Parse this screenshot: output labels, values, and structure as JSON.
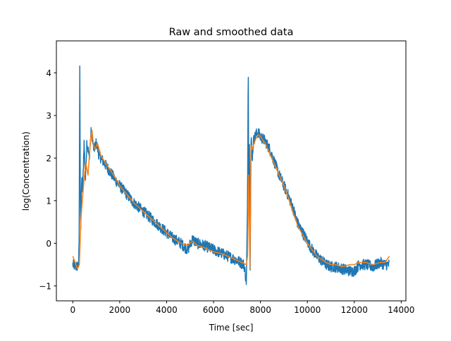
{
  "chart_data": {
    "type": "line",
    "title": "Raw and smoothed data",
    "xlabel": "Time [sec]",
    "ylabel": "log(Concentration)",
    "xlim": [
      -700,
      14200
    ],
    "ylim": [
      -1.35,
      4.75
    ],
    "x_ticks": [
      0,
      2000,
      4000,
      6000,
      8000,
      10000,
      12000,
      14000
    ],
    "x_tick_labels": [
      "0",
      "2000",
      "4000",
      "6000",
      "8000",
      "10000",
      "12000",
      "14000"
    ],
    "y_ticks": [
      -1,
      0,
      1,
      2,
      3,
      4
    ],
    "y_tick_labels": [
      "−1",
      "0",
      "1",
      "2",
      "3",
      "4"
    ],
    "grid": false,
    "legend": "none",
    "series": [
      {
        "color": "#1f77b4",
        "noise": 0.13,
        "x": [
          0,
          150,
          250,
          270,
          300,
          320,
          340,
          380,
          420,
          480,
          540,
          600,
          700,
          780,
          830,
          870,
          900,
          1000,
          1050,
          1100,
          1200,
          1500,
          1800,
          2000,
          2300,
          2600,
          3000,
          3400,
          3800,
          4200,
          4600,
          4900,
          5100,
          5300,
          5600,
          6000,
          6400,
          6800,
          7000,
          7150,
          7300,
          7400,
          7450,
          7480,
          7500,
          7530,
          7560,
          7600,
          7650,
          7700,
          7800,
          7900,
          8000,
          8200,
          8400,
          8600,
          8800,
          9000,
          9200,
          9400,
          9600,
          9800,
          10000,
          10200,
          10400,
          10600,
          10800,
          11000,
          11200,
          11500,
          11800,
          12000,
          12200,
          12500,
          12800,
          13100,
          13300,
          13500
        ],
        "y": [
          -0.5,
          -0.55,
          -0.5,
          0.1,
          4.4,
          1.2,
          0.2,
          1.6,
          1.2,
          2.4,
          1.5,
          2.4,
          2.0,
          2.6,
          2.5,
          2.3,
          2.2,
          2.35,
          2.25,
          2.1,
          2.0,
          1.75,
          1.5,
          1.35,
          1.15,
          0.95,
          0.75,
          0.55,
          0.35,
          0.15,
          0.0,
          -0.15,
          0.1,
          0.0,
          -0.05,
          -0.15,
          -0.25,
          -0.35,
          -0.4,
          -0.45,
          -0.5,
          -0.9,
          1.0,
          4.4,
          0.8,
          2.5,
          -0.5,
          2.5,
          2.0,
          2.4,
          2.55,
          2.6,
          2.5,
          2.4,
          2.2,
          1.9,
          1.6,
          1.35,
          1.1,
          0.8,
          0.45,
          0.25,
          0.05,
          -0.15,
          -0.3,
          -0.4,
          -0.5,
          -0.55,
          -0.55,
          -0.6,
          -0.65,
          -0.65,
          -0.5,
          -0.5,
          -0.55,
          -0.45,
          -0.5,
          -0.5
        ]
      },
      {
        "color": "#ff7f0e",
        "noise": 0,
        "x": [
          0,
          200,
          280,
          350,
          450,
          550,
          650,
          750,
          820,
          880,
          950,
          1050,
          1200,
          1500,
          1800,
          2000,
          2300,
          2600,
          3000,
          3400,
          3800,
          4200,
          4600,
          4900,
          5100,
          5300,
          5600,
          6000,
          6400,
          6800,
          7000,
          7200,
          7400,
          7450,
          7500,
          7550,
          7600,
          7650,
          7700,
          7800,
          7900,
          8000,
          8200,
          8400,
          8600,
          8800,
          9000,
          9200,
          9400,
          9600,
          9800,
          10000,
          10200,
          10400,
          10600,
          10800,
          11000,
          11200,
          11500,
          11800,
          12000,
          12200,
          12500,
          12800,
          13100,
          13300,
          13500
        ],
        "y": [
          -0.3,
          -0.6,
          -0.5,
          0.6,
          1.3,
          1.9,
          1.6,
          2.4,
          2.65,
          2.3,
          2.2,
          2.35,
          2.05,
          1.8,
          1.55,
          1.35,
          1.15,
          0.95,
          0.75,
          0.55,
          0.35,
          0.15,
          0.0,
          -0.05,
          0.05,
          -0.05,
          -0.1,
          -0.2,
          -0.25,
          -0.35,
          -0.4,
          -0.45,
          -0.5,
          -0.3,
          1.6,
          -0.6,
          2.3,
          2.2,
          2.3,
          2.45,
          2.55,
          2.5,
          2.35,
          2.1,
          1.85,
          1.6,
          1.35,
          1.05,
          0.7,
          0.4,
          0.2,
          0.0,
          -0.15,
          -0.3,
          -0.38,
          -0.45,
          -0.5,
          -0.5,
          -0.55,
          -0.5,
          -0.5,
          -0.45,
          -0.45,
          -0.5,
          -0.45,
          -0.45,
          -0.3
        ]
      }
    ]
  }
}
